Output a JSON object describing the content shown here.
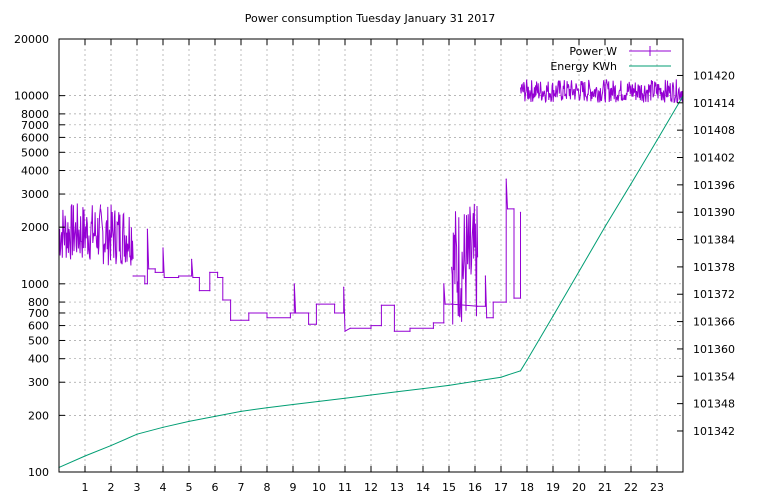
{
  "chart_data": {
    "type": "line",
    "title": "Power consumption Tuesday January 31 2017",
    "x": {
      "range": [
        0,
        24
      ],
      "ticks": [
        1,
        2,
        3,
        4,
        5,
        6,
        7,
        8,
        9,
        10,
        11,
        12,
        13,
        14,
        15,
        16,
        17,
        18,
        19,
        20,
        21,
        22,
        23
      ],
      "tick_labels": [
        "1",
        "2",
        "3",
        "4",
        "5",
        "6",
        "7",
        "8",
        "9",
        "10",
        "11",
        "12",
        "13",
        "14",
        "15",
        "16",
        "17",
        "18",
        "19",
        "20",
        "21",
        "22",
        "23"
      ]
    },
    "y_left": {
      "scale": "log",
      "range": [
        100,
        20000
      ],
      "ticks": [
        100,
        200,
        300,
        400,
        500,
        600,
        700,
        800,
        1000,
        2000,
        3000,
        4000,
        5000,
        6000,
        7000,
        8000,
        10000,
        20000
      ],
      "tick_labels": [
        "100",
        "200",
        "300",
        "400",
        "500",
        "600",
        "700",
        "800",
        "1000",
        "2000",
        "3000",
        "4000",
        "5000",
        "6000",
        "7000",
        "8000",
        "10000",
        "20000"
      ]
    },
    "y_right": {
      "scale": "linear",
      "range": [
        101333,
        101428
      ],
      "ticks": [
        101342,
        101348,
        101354,
        101360,
        101366,
        101372,
        101378,
        101384,
        101390,
        101396,
        101402,
        101408,
        101414,
        101420
      ],
      "tick_labels": [
        "101342",
        "101348",
        "101354",
        "101360",
        "101366",
        "101372",
        "101378",
        "101384",
        "101390",
        "101396",
        "101402",
        "101408",
        "101414",
        "101420"
      ]
    },
    "grid": true,
    "legend": {
      "placement": "top-right"
    },
    "series": [
      {
        "name": "Power W",
        "axis": "left",
        "color": "#9400d3",
        "style": "steps",
        "noisy_segments": [
          {
            "x0": 0.0,
            "x1": 1.6,
            "lo": 1300,
            "hi": 2700
          },
          {
            "x0": 1.6,
            "x1": 2.85,
            "lo": 1250,
            "hi": 2650
          },
          {
            "x0": 15.1,
            "x1": 16.1,
            "lo": 600,
            "hi": 2700
          },
          {
            "x0": 17.75,
            "x1": 24.0,
            "lo": 9200,
            "hi": 12200
          }
        ],
        "points": [
          [
            2.85,
            1100
          ],
          [
            3.3,
            1100
          ],
          [
            3.3,
            1000
          ],
          [
            3.4,
            1000
          ],
          [
            3.4,
            1950
          ],
          [
            3.45,
            1200
          ],
          [
            3.7,
            1200
          ],
          [
            3.7,
            1150
          ],
          [
            4.0,
            1150
          ],
          [
            4.0,
            1550
          ],
          [
            4.05,
            1080
          ],
          [
            4.6,
            1080
          ],
          [
            4.6,
            1100
          ],
          [
            5.1,
            1100
          ],
          [
            5.1,
            1350
          ],
          [
            5.15,
            1080
          ],
          [
            5.4,
            1080
          ],
          [
            5.4,
            920
          ],
          [
            5.8,
            920
          ],
          [
            5.8,
            1150
          ],
          [
            6.1,
            1150
          ],
          [
            6.1,
            1080
          ],
          [
            6.3,
            1080
          ],
          [
            6.3,
            820
          ],
          [
            6.6,
            820
          ],
          [
            6.6,
            640
          ],
          [
            7.3,
            640
          ],
          [
            7.3,
            700
          ],
          [
            8.0,
            700
          ],
          [
            8.0,
            660
          ],
          [
            8.9,
            660
          ],
          [
            8.9,
            700
          ],
          [
            9.05,
            700
          ],
          [
            9.05,
            1000
          ],
          [
            9.1,
            700
          ],
          [
            9.6,
            700
          ],
          [
            9.6,
            610
          ],
          [
            9.9,
            610
          ],
          [
            9.9,
            780
          ],
          [
            10.6,
            780
          ],
          [
            10.6,
            700
          ],
          [
            10.95,
            700
          ],
          [
            10.95,
            960
          ],
          [
            11.0,
            560
          ],
          [
            11.2,
            580
          ],
          [
            12.0,
            580
          ],
          [
            12.0,
            600
          ],
          [
            12.4,
            600
          ],
          [
            12.4,
            770
          ],
          [
            12.9,
            770
          ],
          [
            12.9,
            560
          ],
          [
            13.5,
            560
          ],
          [
            13.5,
            580
          ],
          [
            14.4,
            580
          ],
          [
            14.4,
            620
          ],
          [
            14.8,
            620
          ],
          [
            14.8,
            1000
          ],
          [
            14.85,
            780
          ],
          [
            15.1,
            780
          ],
          [
            16.1,
            760
          ],
          [
            16.4,
            760
          ],
          [
            16.4,
            1100
          ],
          [
            16.45,
            660
          ],
          [
            16.7,
            660
          ],
          [
            16.7,
            800
          ],
          [
            17.2,
            800
          ],
          [
            17.2,
            3600
          ],
          [
            17.25,
            2500
          ],
          [
            17.5,
            2500
          ],
          [
            17.5,
            840
          ],
          [
            17.75,
            840
          ],
          [
            17.75,
            2400
          ]
        ]
      },
      {
        "name": "Energy KWh",
        "axis": "right",
        "color": "#009e73",
        "style": "line",
        "points": [
          [
            0.0,
            101334.0
          ],
          [
            1.0,
            101336.5
          ],
          [
            2.0,
            101338.8
          ],
          [
            3.0,
            101341.3
          ],
          [
            4.0,
            101342.8
          ],
          [
            5.0,
            101344.1
          ],
          [
            6.0,
            101345.2
          ],
          [
            7.0,
            101346.3
          ],
          [
            8.0,
            101347.1
          ],
          [
            9.0,
            101347.8
          ],
          [
            10.0,
            101348.5
          ],
          [
            11.0,
            101349.2
          ],
          [
            12.0,
            101349.9
          ],
          [
            13.0,
            101350.6
          ],
          [
            14.0,
            101351.3
          ],
          [
            15.0,
            101352.0
          ],
          [
            16.0,
            101352.9
          ],
          [
            17.0,
            101353.8
          ],
          [
            17.75,
            101355.2
          ],
          [
            18.0,
            101357.5
          ],
          [
            19.0,
            101367.2
          ],
          [
            20.0,
            101377.0
          ],
          [
            21.0,
            101386.8
          ],
          [
            22.0,
            101396.2
          ],
          [
            23.0,
            101405.8
          ],
          [
            24.0,
            101415.5
          ]
        ]
      }
    ]
  }
}
